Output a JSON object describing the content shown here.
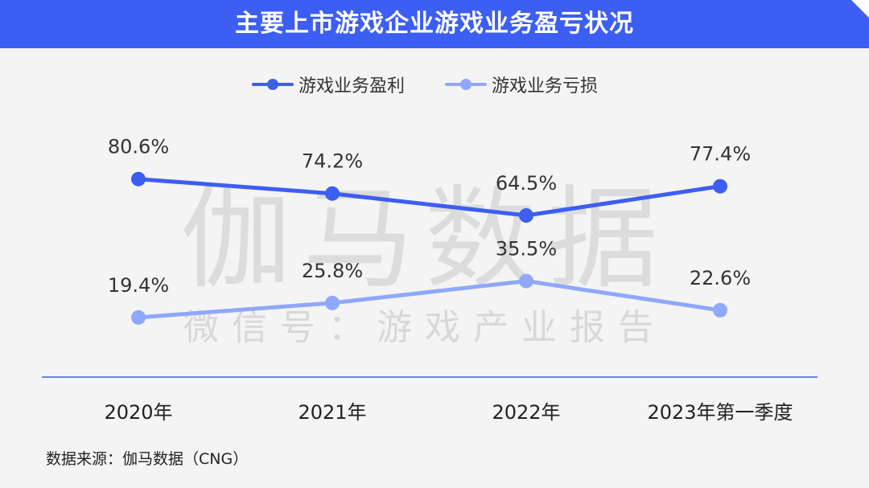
{
  "header": {
    "title": "主要上市游戏企业游戏业务盈亏状况"
  },
  "watermark": {
    "main": "伽马数据",
    "sub": "微信号：游戏产业报告"
  },
  "chart_data": {
    "type": "line",
    "categories": [
      "2020年",
      "2021年",
      "2022年",
      "2023年第一季度"
    ],
    "series": [
      {
        "name": "游戏业务盈利",
        "values": [
          80.6,
          74.2,
          64.5,
          77.4
        ],
        "labels": [
          "80.6%",
          "74.2%",
          "64.5%",
          "77.4%"
        ],
        "color": "#3d5ef2"
      },
      {
        "name": "游戏业务亏损",
        "values": [
          19.4,
          25.8,
          35.5,
          22.6
        ],
        "labels": [
          "19.4%",
          "25.8%",
          "35.5%",
          "22.6%"
        ],
        "color": "#8fa8fb"
      }
    ],
    "legend_position": "top-center",
    "grid": false
  },
  "source": {
    "text": "数据来源：伽马数据（CNG）"
  },
  "colors": {
    "header_bg": "#3d5ef2",
    "background": "#f4f4f4",
    "axis": "#3d5ef2",
    "watermark": "#dcdcdc"
  }
}
